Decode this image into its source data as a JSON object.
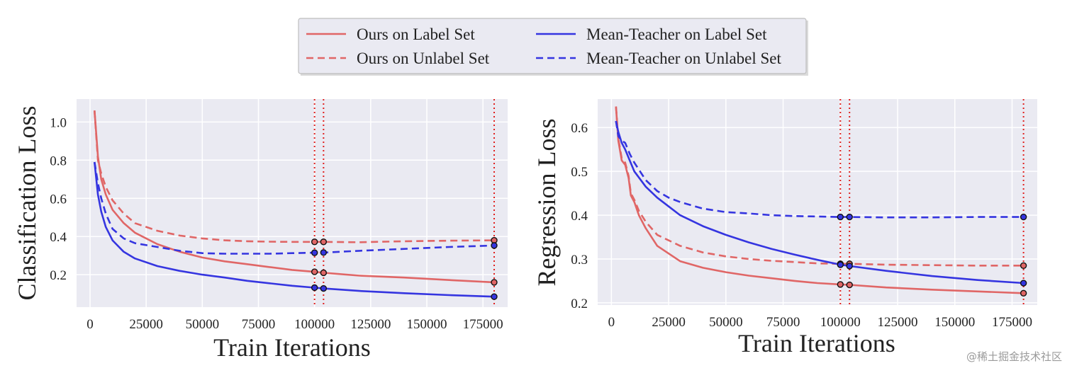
{
  "chart_data": [
    {
      "type": "line",
      "ylabel": "Classification Loss",
      "xlabel": "Train Iterations",
      "xlim": [
        -6000,
        186000
      ],
      "ylim": [
        0.03,
        1.12
      ],
      "xticks": [
        0,
        25000,
        50000,
        75000,
        100000,
        125000,
        150000,
        175000
      ],
      "yticks": [
        0.2,
        0.4,
        0.6,
        0.8,
        1.0
      ],
      "ytick_labels": [
        "0.2",
        "0.4",
        "0.6",
        "0.8",
        "1.0"
      ],
      "grid": true,
      "vlines": [
        100000,
        104000,
        180000
      ],
      "series": [
        {
          "name": "Ours on Label Set",
          "color": "#e06666",
          "dash": "solid",
          "x": [
            2000,
            3500,
            5000,
            7000,
            10000,
            15000,
            20000,
            30000,
            40000,
            50000,
            60000,
            70000,
            80000,
            90000,
            100000,
            104000,
            120000,
            140000,
            160000,
            180000
          ],
          "y": [
            1.06,
            0.82,
            0.7,
            0.62,
            0.54,
            0.47,
            0.42,
            0.36,
            0.32,
            0.29,
            0.27,
            0.255,
            0.24,
            0.225,
            0.215,
            0.21,
            0.195,
            0.185,
            0.172,
            0.16
          ],
          "markers": [
            100000,
            104000,
            180000
          ]
        },
        {
          "name": "Ours on Unlabel Set",
          "color": "#e06666",
          "dash": "dashed",
          "x": [
            2000,
            3500,
            5000,
            7000,
            10000,
            15000,
            20000,
            30000,
            40000,
            50000,
            60000,
            70000,
            80000,
            90000,
            100000,
            104000,
            120000,
            140000,
            160000,
            180000
          ],
          "y": [
            1.06,
            0.8,
            0.73,
            0.66,
            0.59,
            0.52,
            0.47,
            0.43,
            0.405,
            0.39,
            0.38,
            0.375,
            0.373,
            0.372,
            0.372,
            0.372,
            0.37,
            0.375,
            0.378,
            0.38
          ],
          "markers": [
            100000,
            104000,
            180000
          ]
        },
        {
          "name": "Mean-Teacher on Label Set",
          "color": "#3535e0",
          "dash": "solid",
          "x": [
            2000,
            3500,
            5000,
            7000,
            10000,
            15000,
            20000,
            30000,
            40000,
            50000,
            60000,
            70000,
            80000,
            90000,
            100000,
            104000,
            120000,
            140000,
            160000,
            180000
          ],
          "y": [
            0.79,
            0.62,
            0.53,
            0.45,
            0.38,
            0.32,
            0.285,
            0.245,
            0.22,
            0.2,
            0.185,
            0.168,
            0.155,
            0.142,
            0.132,
            0.128,
            0.115,
            0.103,
            0.093,
            0.085
          ],
          "markers": [
            100000,
            104000,
            180000
          ]
        },
        {
          "name": "Mean-Teacher on Unlabel Set",
          "color": "#3535e0",
          "dash": "dashed",
          "x": [
            2000,
            3500,
            5000,
            7000,
            10000,
            15000,
            20000,
            30000,
            40000,
            50000,
            60000,
            70000,
            80000,
            90000,
            100000,
            104000,
            120000,
            140000,
            160000,
            180000
          ],
          "y": [
            0.79,
            0.68,
            0.6,
            0.52,
            0.44,
            0.39,
            0.365,
            0.345,
            0.325,
            0.313,
            0.31,
            0.31,
            0.31,
            0.313,
            0.315,
            0.316,
            0.325,
            0.335,
            0.345,
            0.353
          ],
          "markers": [
            100000,
            104000,
            180000
          ]
        }
      ]
    },
    {
      "type": "line",
      "ylabel": "Regression Loss",
      "xlabel": "Train Iterations",
      "xlim": [
        -6000,
        186000
      ],
      "ylim": [
        0.195,
        0.665
      ],
      "xticks": [
        0,
        25000,
        50000,
        75000,
        100000,
        125000,
        150000,
        175000
      ],
      "yticks": [
        0.2,
        0.3,
        0.4,
        0.5,
        0.6
      ],
      "ytick_labels": [
        "0.2",
        "0.3",
        "0.4",
        "0.5",
        "0.6"
      ],
      "grid": true,
      "vlines": [
        100000,
        104000,
        180000
      ],
      "series": [
        {
          "name": "Ours on Label Set",
          "color": "#e06666",
          "dash": "solid",
          "x": [
            2000,
            3000,
            4500,
            6000,
            7500,
            8500,
            10000,
            12000,
            15000,
            20000,
            30000,
            40000,
            50000,
            60000,
            70000,
            80000,
            90000,
            100000,
            104000,
            120000,
            140000,
            160000,
            180000
          ],
          "y": [
            0.648,
            0.57,
            0.525,
            0.515,
            0.485,
            0.445,
            0.43,
            0.4,
            0.37,
            0.33,
            0.295,
            0.28,
            0.27,
            0.262,
            0.256,
            0.25,
            0.245,
            0.242,
            0.241,
            0.235,
            0.23,
            0.226,
            0.222
          ],
          "markers": [
            100000,
            104000,
            180000
          ]
        },
        {
          "name": "Ours on Unlabel Set",
          "color": "#e06666",
          "dash": "dashed",
          "x": [
            2000,
            3000,
            4500,
            6000,
            7500,
            8500,
            10000,
            12000,
            15000,
            20000,
            30000,
            40000,
            50000,
            60000,
            70000,
            80000,
            90000,
            100000,
            104000,
            120000,
            140000,
            160000,
            180000
          ],
          "y": [
            0.648,
            0.575,
            0.53,
            0.52,
            0.49,
            0.45,
            0.435,
            0.41,
            0.385,
            0.355,
            0.33,
            0.315,
            0.306,
            0.3,
            0.296,
            0.293,
            0.29,
            0.289,
            0.289,
            0.287,
            0.286,
            0.285,
            0.285
          ],
          "markers": [
            100000,
            104000,
            180000
          ]
        },
        {
          "name": "Mean-Teacher on Label Set",
          "color": "#3535e0",
          "dash": "solid",
          "x": [
            2000,
            3000,
            4500,
            6000,
            8000,
            10000,
            15000,
            20000,
            25000,
            30000,
            40000,
            50000,
            60000,
            70000,
            80000,
            90000,
            100000,
            104000,
            120000,
            140000,
            160000,
            180000
          ],
          "y": [
            0.615,
            0.59,
            0.565,
            0.55,
            0.525,
            0.5,
            0.465,
            0.44,
            0.42,
            0.4,
            0.375,
            0.355,
            0.338,
            0.323,
            0.31,
            0.298,
            0.287,
            0.284,
            0.273,
            0.261,
            0.252,
            0.245
          ],
          "markers": [
            100000,
            104000,
            180000
          ]
        },
        {
          "name": "Mean-Teacher on Unlabel Set",
          "color": "#3535e0",
          "dash": "dashed",
          "x": [
            2000,
            3000,
            4500,
            6000,
            8000,
            10000,
            15000,
            20000,
            25000,
            30000,
            40000,
            50000,
            60000,
            70000,
            80000,
            90000,
            100000,
            104000,
            120000,
            140000,
            160000,
            180000
          ],
          "y": [
            0.615,
            0.58,
            0.57,
            0.565,
            0.54,
            0.52,
            0.48,
            0.455,
            0.44,
            0.43,
            0.415,
            0.407,
            0.404,
            0.4,
            0.398,
            0.397,
            0.396,
            0.396,
            0.395,
            0.395,
            0.396,
            0.396
          ],
          "markers": [
            100000,
            104000,
            180000
          ]
        }
      ]
    }
  ],
  "legend": {
    "entries": [
      {
        "label": "Ours on Label Set",
        "color": "#e06666",
        "dash": "solid"
      },
      {
        "label": "Mean-Teacher on Label Set",
        "color": "#3535e0",
        "dash": "solid"
      },
      {
        "label": "Ours on Unlabel Set",
        "color": "#e06666",
        "dash": "dashed"
      },
      {
        "label": "Mean-Teacher on Unlabel Set",
        "color": "#3535e0",
        "dash": "dashed"
      }
    ]
  },
  "colors": {
    "plot_bg": "#eaeaf2",
    "grid": "#ffffff",
    "vline": "#e0201e"
  },
  "watermark": "@稀土掘金技术社区"
}
